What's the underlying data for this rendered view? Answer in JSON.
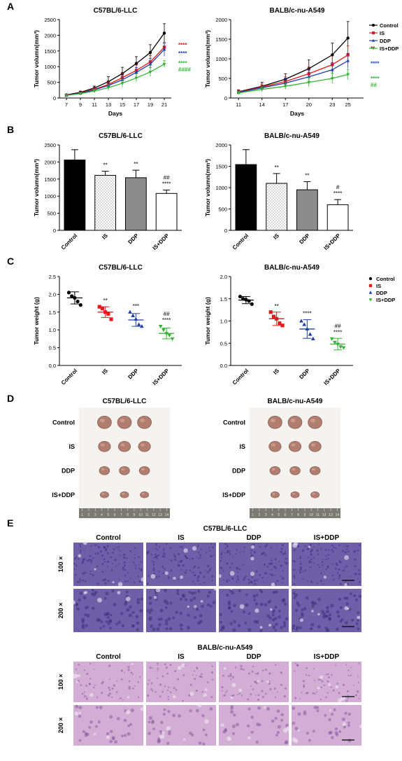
{
  "panels": {
    "A": {
      "letter": "A",
      "xlabel": "Days",
      "ylabel": "Tumor volumn(mm³)"
    },
    "B": {
      "letter": "B",
      "ylabel": "Tumor volumn(mm³)"
    },
    "C": {
      "letter": "C",
      "ylabel": "Tumor weight (g)"
    },
    "D": {
      "letter": "D"
    },
    "E": {
      "letter": "E"
    }
  },
  "legend": [
    {
      "name": "Control",
      "marker": "circle",
      "color": "#000000"
    },
    {
      "name": "IS",
      "marker": "square",
      "color": "#e31a1c"
    },
    {
      "name": "DDP",
      "marker": "triangle-up",
      "color": "#1f3fa8"
    },
    {
      "name": "IS+DDP",
      "marker": "triangle-down",
      "color": "#33b233"
    }
  ],
  "chart_data": [
    {
      "panel": "A-left",
      "type": "line",
      "title": "C57BL/6-LLC",
      "xlabel": "Days",
      "ylabel": "Tumor volumn(mm³)",
      "x": [
        7,
        9,
        11,
        13,
        15,
        17,
        19,
        21
      ],
      "xlim": [
        6,
        22
      ],
      "ylim": [
        0,
        2500
      ],
      "xticks": [
        7,
        9,
        11,
        13,
        15,
        17,
        19,
        21
      ],
      "yticks": [
        0,
        500,
        1000,
        1500,
        2000,
        2500
      ],
      "series": [
        {
          "name": "Control",
          "color": "#000000",
          "marker": "circle",
          "values": [
            100,
            180,
            320,
            520,
            780,
            1100,
            1450,
            2070
          ],
          "errors": [
            20,
            40,
            60,
            160,
            200,
            220,
            250,
            300
          ]
        },
        {
          "name": "IS",
          "color": "#e31a1c",
          "marker": "square",
          "values": [
            90,
            160,
            280,
            430,
            650,
            880,
            1150,
            1620
          ],
          "errors": [
            15,
            30,
            60,
            120,
            150,
            170,
            200,
            120
          ]
        },
        {
          "name": "DDP",
          "color": "#1f3fa8",
          "marker": "triangle-up",
          "values": [
            85,
            150,
            260,
            400,
            580,
            820,
            1080,
            1550
          ],
          "errors": [
            15,
            30,
            55,
            100,
            140,
            150,
            180,
            220
          ]
        },
        {
          "name": "IS+DDP",
          "color": "#33b233",
          "marker": "triangle-down",
          "values": [
            80,
            140,
            220,
            330,
            470,
            640,
            830,
            1080
          ],
          "errors": [
            15,
            25,
            50,
            90,
            120,
            130,
            140,
            110
          ]
        }
      ],
      "annotations": [
        {
          "text": "****",
          "color": "#e31a1c",
          "y": 1700
        },
        {
          "text": "****",
          "color": "#1f3fa8",
          "y": 1430
        },
        {
          "text": "****",
          "color": "#33b233",
          "y": 1120
        },
        {
          "text": "####",
          "color": "#33b233",
          "y": 920
        }
      ]
    },
    {
      "panel": "A-right",
      "type": "line",
      "title": "BALB/c-nu-A549",
      "xlabel": "Days",
      "ylabel": "Tumor volumn(mm³)",
      "x": [
        11,
        14,
        17,
        20,
        23,
        25
      ],
      "xlim": [
        10,
        27
      ],
      "ylim": [
        0,
        2000
      ],
      "xticks": [
        11,
        14,
        17,
        20,
        23,
        25
      ],
      "yticks": [
        0,
        500,
        1000,
        1500,
        2000
      ],
      "series": [
        {
          "name": "Control",
          "color": "#000000",
          "marker": "circle",
          "values": [
            160,
            300,
            480,
            750,
            1100,
            1530
          ],
          "errors": [
            50,
            100,
            140,
            220,
            300,
            420
          ]
        },
        {
          "name": "IS",
          "color": "#e31a1c",
          "marker": "square",
          "values": [
            150,
            280,
            420,
            620,
            850,
            1100
          ],
          "errors": [
            50,
            80,
            120,
            180,
            220,
            230
          ]
        },
        {
          "name": "DDP",
          "color": "#1f3fa8",
          "marker": "triangle-up",
          "values": [
            140,
            260,
            380,
            540,
            720,
            950
          ],
          "errors": [
            40,
            70,
            110,
            160,
            180,
            190
          ]
        },
        {
          "name": "IS+DDP",
          "color": "#33b233",
          "marker": "triangle-down",
          "values": [
            130,
            220,
            300,
            400,
            500,
            600
          ],
          "errors": [
            40,
            60,
            80,
            120,
            130,
            130
          ]
        }
      ],
      "annotations": [
        {
          "text": "**",
          "color": "#e31a1c",
          "y": 1270
        },
        {
          "text": "****",
          "color": "#1f3fa8",
          "y": 880
        },
        {
          "text": "****",
          "color": "#33b233",
          "y": 500
        },
        {
          "text": "##",
          "color": "#33b233",
          "y": 340
        }
      ]
    },
    {
      "panel": "B-left",
      "type": "bar",
      "title": "C57BL/6-LLC",
      "ylabel": "Tumor volumn(mm³)",
      "categories": [
        "Control",
        "IS",
        "DDP",
        "IS+DDP"
      ],
      "values": [
        2060,
        1610,
        1540,
        1080
      ],
      "errors": [
        300,
        120,
        220,
        100
      ],
      "ylim": [
        0,
        2500
      ],
      "yticks": [
        0,
        500,
        1000,
        1500,
        2000,
        2500
      ],
      "fills": [
        "#000000",
        "dots",
        "#8c8c8c",
        "#ffffff"
      ],
      "significance": [
        [],
        [
          "**"
        ],
        [
          "**"
        ],
        [
          "##",
          "****"
        ]
      ]
    },
    {
      "panel": "B-right",
      "type": "bar",
      "title": "BALB/c-nu-A549",
      "ylabel": "Tumor volumn(mm³)",
      "categories": [
        "Control",
        "IS",
        "DDP",
        "IS+DDP"
      ],
      "values": [
        1540,
        1100,
        950,
        600
      ],
      "errors": [
        350,
        230,
        190,
        120
      ],
      "ylim": [
        0,
        2000
      ],
      "yticks": [
        0,
        500,
        1000,
        1500,
        2000
      ],
      "fills": [
        "#000000",
        "dots",
        "#8c8c8c",
        "#ffffff"
      ],
      "significance": [
        [],
        [
          "**"
        ],
        [
          "**"
        ],
        [
          "#",
          "****"
        ]
      ]
    },
    {
      "panel": "C-left",
      "type": "scatter",
      "title": "C57BL/6-LLC",
      "ylabel": "Tumor weight (g)",
      "categories": [
        "Control",
        "IS",
        "DDP",
        "IS+DDP"
      ],
      "ylim": [
        0,
        2.5
      ],
      "yticks": [
        0.0,
        0.5,
        1.0,
        1.5,
        2.0,
        2.5
      ],
      "groups": [
        {
          "name": "Control",
          "points": [
            2.05,
            1.95,
            1.9,
            1.8,
            1.7
          ],
          "mean": 1.9,
          "sd": 0.17
        },
        {
          "name": "IS",
          "points": [
            1.65,
            1.6,
            1.5,
            1.45,
            1.3
          ],
          "mean": 1.5,
          "sd": 0.15
        },
        {
          "name": "DDP",
          "points": [
            1.5,
            1.4,
            1.3,
            1.15,
            1.1
          ],
          "mean": 1.28,
          "sd": 0.18
        },
        {
          "name": "IS+DDP",
          "points": [
            1.1,
            1.0,
            0.9,
            0.85,
            0.75
          ],
          "mean": 0.9,
          "sd": 0.15
        }
      ],
      "significance": [
        [],
        [
          "**"
        ],
        [
          "***"
        ],
        [
          "##",
          "****"
        ]
      ]
    },
    {
      "panel": "C-right",
      "type": "scatter",
      "title": "BALB/c-nu-A549",
      "ylabel": "Tumor weight (g)",
      "categories": [
        "Control",
        "IS",
        "DDP",
        "IS+DDP"
      ],
      "ylim": [
        0,
        2.0
      ],
      "yticks": [
        0.0,
        0.5,
        1.0,
        1.5,
        2.0
      ],
      "groups": [
        {
          "name": "Control",
          "points": [
            1.55,
            1.5,
            1.48,
            1.45,
            1.38
          ],
          "mean": 1.47,
          "sd": 0.08
        },
        {
          "name": "IS",
          "points": [
            1.2,
            1.1,
            1.05,
            0.95,
            0.9
          ],
          "mean": 1.05,
          "sd": 0.15
        },
        {
          "name": "DDP",
          "points": [
            1.0,
            0.92,
            0.82,
            0.7,
            0.6
          ],
          "mean": 0.82,
          "sd": 0.21
        },
        {
          "name": "IS+DDP",
          "points": [
            0.6,
            0.52,
            0.48,
            0.42,
            0.4
          ],
          "mean": 0.48,
          "sd": 0.13
        }
      ],
      "significance": [
        [],
        [
          "**"
        ],
        [
          "****"
        ],
        [
          "##",
          "****"
        ]
      ]
    }
  ],
  "photos": {
    "left": {
      "title": "C57BL/6-LLC",
      "rows": [
        "Control",
        "IS",
        "DDP",
        "IS+DDP"
      ],
      "cols": 3,
      "ruler_labels": [
        "1",
        "2",
        "3",
        "4",
        "5",
        "6",
        "7",
        "8",
        "9",
        "10",
        "11",
        "12",
        "13",
        "14"
      ]
    },
    "right": {
      "title": "BALB/c-nu-A549",
      "rows": [
        "Control",
        "IS",
        "DDP",
        "IS+DDP"
      ],
      "cols": 3,
      "ruler_labels": [
        "1",
        "2",
        "3",
        "4",
        "5",
        "6",
        "7",
        "8",
        "9",
        "10",
        "11",
        "12",
        "13",
        "14"
      ]
    }
  },
  "histology": [
    {
      "title": "C57BL/6-LLC",
      "columns": [
        "Control",
        "IS",
        "DDP",
        "IS+DDP"
      ],
      "rows": [
        "100 ×",
        "200 ×"
      ],
      "base_color": "#6e5fa8",
      "stain": "dense"
    },
    {
      "title": "BALB/c-nu-A549",
      "columns": [
        "Control",
        "IS",
        "DDP",
        "IS+DDP"
      ],
      "rows": [
        "100 ×",
        "200 ×"
      ],
      "base_color": "#d2aed4",
      "stain": "light"
    }
  ]
}
